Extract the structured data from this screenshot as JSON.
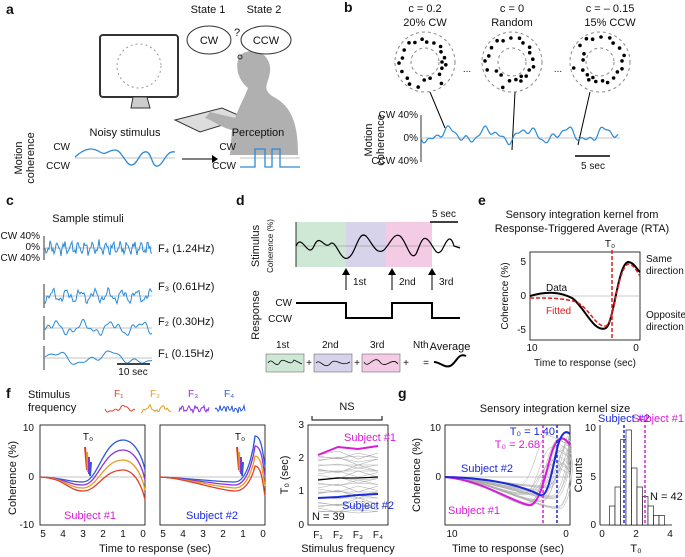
{
  "panel_a": {
    "label": "a",
    "state1": "State 1",
    "state2": "State 2",
    "thought1": "CW",
    "question": "?",
    "thought2": "CCW",
    "ylabel": [
      "Motion",
      "coherence"
    ],
    "stimulus_title": "Noisy stimulus",
    "perception_title": "Perception",
    "stimulus_axis": [
      "CW",
      "CCW"
    ],
    "perception_axis": [
      "CW",
      "CCW"
    ]
  },
  "panel_b": {
    "label": "b",
    "conditions": [
      {
        "c": "c = 0.2",
        "desc": "20% CW"
      },
      {
        "c": "c = 0",
        "desc": "Random"
      },
      {
        "c": "c = – 0.15",
        "desc": "15% CCW"
      }
    ],
    "ellipsis": [
      "...",
      "..."
    ],
    "yticks": [
      "CW 40%",
      "0%",
      "CCW 40%"
    ],
    "ylabel": [
      "Motion",
      "coherence"
    ],
    "scale": "5 sec"
  },
  "panel_c": {
    "label": "c",
    "title": "Sample stimuli",
    "yticks": [
      "CW 40%",
      "0%",
      "CCW 40%"
    ],
    "traces": [
      "F₄ (1.24Hz)",
      "F₃ (0.61Hz)",
      "F₂ (0.30Hz)",
      "F₁ (0.15Hz)"
    ],
    "scale": "10 sec"
  },
  "panel_d": {
    "label": "d",
    "scale": "5 sec",
    "stimulus_label": "Stimulus",
    "stimulus_unit": "Coherence (%)",
    "response_label": "Response",
    "response_axis": [
      "CW",
      "CCW"
    ],
    "responses": [
      "1st",
      "2nd",
      "3rd"
    ],
    "segments": [
      "1st",
      "2nd",
      "3rd",
      "Nth"
    ],
    "plus": "+",
    "equals": "=",
    "average": "Average"
  },
  "panel_e": {
    "label": "e",
    "title": [
      "Sensory integration kernel from",
      "Response-Triggered Average (RTA)"
    ],
    "t0": "T₀",
    "same": [
      "Same",
      "direction"
    ],
    "opposite": [
      "Opposite",
      "direction"
    ],
    "data": "Data",
    "fitted": "Fitted",
    "ylabel": "Coherence (%)",
    "yticks": [
      "5",
      "0",
      "-5"
    ],
    "xticks": [
      "10",
      "0"
    ],
    "xlabel": "Time to response (sec)"
  },
  "panel_f": {
    "label": "f",
    "legend_title": [
      "Stimulus",
      "frequency"
    ],
    "legend": [
      "F₁",
      "F₂",
      "F₃",
      "F₄"
    ],
    "t0": [
      "T₀",
      "T₀"
    ],
    "ylabel": "Coherence (%)",
    "yticks": [
      "10",
      "0",
      "-10"
    ],
    "xticks": [
      "5",
      "4",
      "3",
      "2",
      "1",
      "0"
    ],
    "xlabel": "Time to response (sec)",
    "subjects": [
      "Subject #1",
      "Subject #2"
    ],
    "summary": {
      "sig": "NS",
      "ylabel": "T₀ (sec)",
      "yticks": [
        "3",
        "2",
        "1",
        "0"
      ],
      "subject1": "Subject #1",
      "subject2": "Subject #2",
      "n": "N = 39",
      "xticks": [
        "F₁",
        "F₂",
        "F₃",
        "F₄"
      ],
      "xlabel": "Stimulus frequency"
    }
  },
  "panel_g": {
    "label": "g",
    "title": "Sensory integration kernel size",
    "t0_subject2": "T₀ = 1.40",
    "t0_subject1": "T₀ = 2.68",
    "subject2": "Subject #2",
    "subject1": "Subject #1",
    "ylabel": "Coherence (%)",
    "yticks": [
      "10",
      "0"
    ],
    "xticks": [
      "10",
      "0"
    ],
    "xlabel": "Time to response (sec)",
    "hist": {
      "subject2": "Subject #2",
      "subject1": "Subject #1",
      "n": "N = 42",
      "ylabel": "Counts",
      "yticks": [
        "10",
        "5",
        "0"
      ],
      "xticks": [
        "0",
        "2",
        "4"
      ],
      "xlabel": "T₀"
    }
  }
}
